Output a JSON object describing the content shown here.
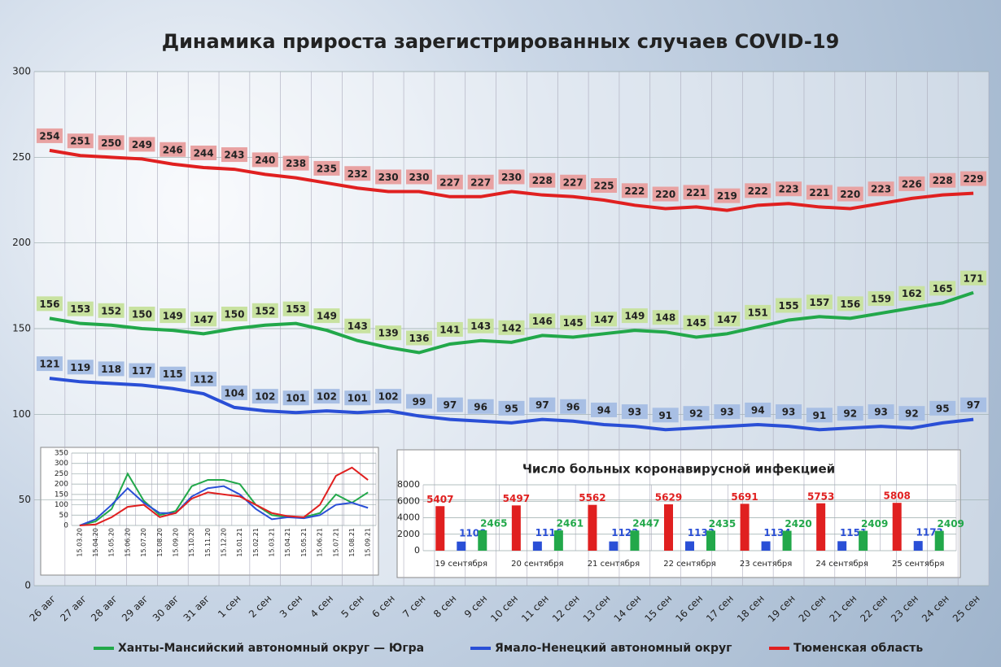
{
  "chart_data": [
    {
      "type": "line",
      "title": "Динамика прироста зарегистрированных случаев COVID-19",
      "categories": [
        "26 авг",
        "27 авг",
        "28 авг",
        "29 авг",
        "30 авг",
        "31 авг",
        "1 сен",
        "2 сен",
        "3 сен",
        "4 сен",
        "5 сен",
        "6 сен",
        "7 сен",
        "8 сен",
        "9 сен",
        "10 сен",
        "11 сен",
        "12 сен",
        "13 сен",
        "14 сен",
        "15 сен",
        "16 сен",
        "17 сен",
        "18 сен",
        "19 сен",
        "20 сен",
        "21 сен",
        "22 сен",
        "23 сен",
        "24 сен",
        "25 сен"
      ],
      "series": [
        {
          "name": "Ханты-Мансийский автономный округ — Югра",
          "color": "#22a84a",
          "values": [
            156,
            153,
            152,
            150,
            149,
            147,
            150,
            152,
            153,
            149,
            143,
            139,
            136,
            141,
            143,
            142,
            146,
            145,
            147,
            149,
            148,
            145,
            147,
            151,
            155,
            157,
            156,
            159,
            162,
            165,
            171
          ]
        },
        {
          "name": "Ямало-Ненецкий автономный округ",
          "color": "#2a4fd6",
          "values": [
            121,
            119,
            118,
            117,
            115,
            112,
            104,
            102,
            101,
            102,
            101,
            102,
            99,
            97,
            96,
            95,
            97,
            96,
            94,
            93,
            91,
            92,
            93,
            94,
            93,
            91,
            92,
            93,
            92,
            95,
            97
          ]
        },
        {
          "name": "Тюменская область",
          "color": "#e02020",
          "values": [
            254,
            251,
            250,
            249,
            246,
            244,
            243,
            240,
            238,
            235,
            232,
            230,
            230,
            227,
            227,
            230,
            228,
            227,
            225,
            222,
            220,
            221,
            219,
            222,
            223,
            221,
            220,
            223,
            226,
            228,
            229
          ]
        }
      ],
      "ylim": [
        0,
        300
      ],
      "yticks": [
        0,
        50,
        100,
        150,
        200,
        250,
        300
      ],
      "grid": true,
      "data_labels": true
    },
    {
      "type": "line",
      "categories": [
        "15.03.20",
        "15.04.20",
        "15.05.20",
        "15.06.20",
        "15.07.20",
        "15.08.20",
        "15.09.20",
        "15.10.20",
        "15.11.20",
        "15.12.20",
        "15.01.21",
        "15.02.21",
        "15.03.21",
        "15.04.21",
        "15.05.21",
        "15.06.21",
        "15.07.21",
        "15.08.21",
        "15.09.21"
      ],
      "series": [
        {
          "color": "#22a84a",
          "values": [
            0,
            20,
            80,
            250,
            120,
            50,
            70,
            190,
            220,
            220,
            200,
            100,
            50,
            40,
            40,
            60,
            150,
            110,
            160
          ]
        },
        {
          "color": "#2a4fd6",
          "values": [
            0,
            30,
            100,
            180,
            110,
            60,
            60,
            140,
            180,
            190,
            150,
            80,
            30,
            40,
            35,
            50,
            100,
            110,
            85
          ]
        },
        {
          "color": "#e02020",
          "values": [
            0,
            5,
            40,
            90,
            100,
            40,
            60,
            130,
            160,
            150,
            140,
            100,
            60,
            45,
            40,
            100,
            240,
            280,
            220
          ]
        }
      ],
      "ylim": [
        0,
        350
      ],
      "yticks": [
        0,
        50,
        100,
        150,
        200,
        250,
        300,
        350
      ],
      "grid": true,
      "data_labels": false
    },
    {
      "type": "bar",
      "title": "Число больных коронавирусной инфекцией",
      "categories": [
        "19 сентября",
        "20 сентября",
        "21 сентября",
        "22 сентября",
        "23 сентября",
        "24 сентября",
        "25 сентября"
      ],
      "series": [
        {
          "color": "#e02020",
          "values": [
            5407,
            5497,
            5562,
            5629,
            5691,
            5753,
            5808
          ]
        },
        {
          "color": "#2a4fd6",
          "values": [
            1108,
            1116,
            1122,
            1133,
            1134,
            1151,
            1173
          ]
        },
        {
          "color": "#22a84a",
          "values": [
            2465,
            2461,
            2447,
            2435,
            2420,
            2409,
            2409
          ]
        }
      ],
      "ylim": [
        0,
        8000
      ],
      "yticks": [
        0,
        2000,
        4000,
        6000,
        8000
      ],
      "grid": true,
      "data_labels": true
    }
  ]
}
